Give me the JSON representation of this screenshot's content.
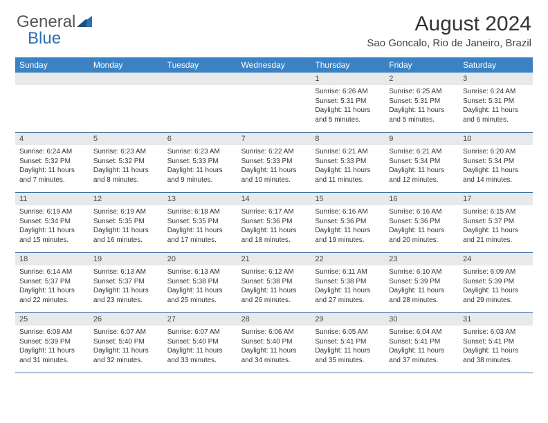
{
  "brand": {
    "part1": "General",
    "part2": "Blue",
    "color1": "#5c5c5c",
    "color2": "#2f6fb0"
  },
  "title": {
    "month": "August 2024",
    "location": "Sao Goncalo, Rio de Janeiro, Brazil"
  },
  "colors": {
    "header_bg": "#3b82c4",
    "header_fg": "#ffffff",
    "daynum_bg": "#e7e9eb",
    "border": "#3b6fa0",
    "text": "#333333"
  },
  "day_labels": [
    "Sunday",
    "Monday",
    "Tuesday",
    "Wednesday",
    "Thursday",
    "Friday",
    "Saturday"
  ],
  "weeks": [
    [
      null,
      null,
      null,
      null,
      {
        "n": "1",
        "sr": "6:26 AM",
        "ss": "5:31 PM",
        "dl": "11 hours and 5 minutes."
      },
      {
        "n": "2",
        "sr": "6:25 AM",
        "ss": "5:31 PM",
        "dl": "11 hours and 5 minutes."
      },
      {
        "n": "3",
        "sr": "6:24 AM",
        "ss": "5:31 PM",
        "dl": "11 hours and 6 minutes."
      }
    ],
    [
      {
        "n": "4",
        "sr": "6:24 AM",
        "ss": "5:32 PM",
        "dl": "11 hours and 7 minutes."
      },
      {
        "n": "5",
        "sr": "6:23 AM",
        "ss": "5:32 PM",
        "dl": "11 hours and 8 minutes."
      },
      {
        "n": "6",
        "sr": "6:23 AM",
        "ss": "5:33 PM",
        "dl": "11 hours and 9 minutes."
      },
      {
        "n": "7",
        "sr": "6:22 AM",
        "ss": "5:33 PM",
        "dl": "11 hours and 10 minutes."
      },
      {
        "n": "8",
        "sr": "6:21 AM",
        "ss": "5:33 PM",
        "dl": "11 hours and 11 minutes."
      },
      {
        "n": "9",
        "sr": "6:21 AM",
        "ss": "5:34 PM",
        "dl": "11 hours and 12 minutes."
      },
      {
        "n": "10",
        "sr": "6:20 AM",
        "ss": "5:34 PM",
        "dl": "11 hours and 14 minutes."
      }
    ],
    [
      {
        "n": "11",
        "sr": "6:19 AM",
        "ss": "5:34 PM",
        "dl": "11 hours and 15 minutes."
      },
      {
        "n": "12",
        "sr": "6:19 AM",
        "ss": "5:35 PM",
        "dl": "11 hours and 16 minutes."
      },
      {
        "n": "13",
        "sr": "6:18 AM",
        "ss": "5:35 PM",
        "dl": "11 hours and 17 minutes."
      },
      {
        "n": "14",
        "sr": "6:17 AM",
        "ss": "5:36 PM",
        "dl": "11 hours and 18 minutes."
      },
      {
        "n": "15",
        "sr": "6:16 AM",
        "ss": "5:36 PM",
        "dl": "11 hours and 19 minutes."
      },
      {
        "n": "16",
        "sr": "6:16 AM",
        "ss": "5:36 PM",
        "dl": "11 hours and 20 minutes."
      },
      {
        "n": "17",
        "sr": "6:15 AM",
        "ss": "5:37 PM",
        "dl": "11 hours and 21 minutes."
      }
    ],
    [
      {
        "n": "18",
        "sr": "6:14 AM",
        "ss": "5:37 PM",
        "dl": "11 hours and 22 minutes."
      },
      {
        "n": "19",
        "sr": "6:13 AM",
        "ss": "5:37 PM",
        "dl": "11 hours and 23 minutes."
      },
      {
        "n": "20",
        "sr": "6:13 AM",
        "ss": "5:38 PM",
        "dl": "11 hours and 25 minutes."
      },
      {
        "n": "21",
        "sr": "6:12 AM",
        "ss": "5:38 PM",
        "dl": "11 hours and 26 minutes."
      },
      {
        "n": "22",
        "sr": "6:11 AM",
        "ss": "5:38 PM",
        "dl": "11 hours and 27 minutes."
      },
      {
        "n": "23",
        "sr": "6:10 AM",
        "ss": "5:39 PM",
        "dl": "11 hours and 28 minutes."
      },
      {
        "n": "24",
        "sr": "6:09 AM",
        "ss": "5:39 PM",
        "dl": "11 hours and 29 minutes."
      }
    ],
    [
      {
        "n": "25",
        "sr": "6:08 AM",
        "ss": "5:39 PM",
        "dl": "11 hours and 31 minutes."
      },
      {
        "n": "26",
        "sr": "6:07 AM",
        "ss": "5:40 PM",
        "dl": "11 hours and 32 minutes."
      },
      {
        "n": "27",
        "sr": "6:07 AM",
        "ss": "5:40 PM",
        "dl": "11 hours and 33 minutes."
      },
      {
        "n": "28",
        "sr": "6:06 AM",
        "ss": "5:40 PM",
        "dl": "11 hours and 34 minutes."
      },
      {
        "n": "29",
        "sr": "6:05 AM",
        "ss": "5:41 PM",
        "dl": "11 hours and 35 minutes."
      },
      {
        "n": "30",
        "sr": "6:04 AM",
        "ss": "5:41 PM",
        "dl": "11 hours and 37 minutes."
      },
      {
        "n": "31",
        "sr": "6:03 AM",
        "ss": "5:41 PM",
        "dl": "11 hours and 38 minutes."
      }
    ]
  ],
  "labels": {
    "sunrise": "Sunrise:",
    "sunset": "Sunset:",
    "daylight": "Daylight:"
  }
}
